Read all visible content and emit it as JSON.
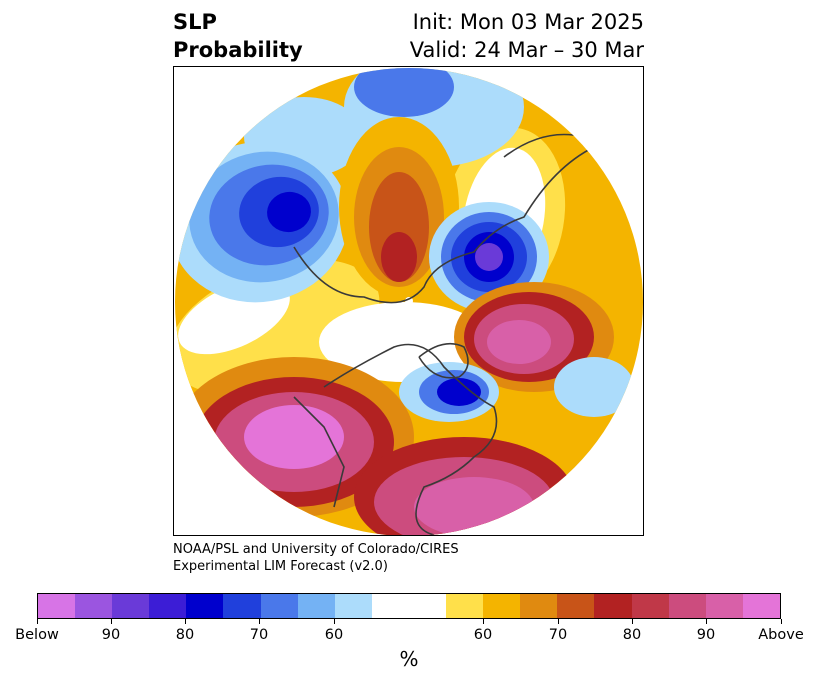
{
  "title": {
    "left_line1": "SLP",
    "left_line2": "Probability",
    "right_line1": "Init: Mon 03 Mar 2025",
    "right_line2": "Valid: 24 Mar – 30 Mar"
  },
  "credit": {
    "line1": "NOAA/PSL and University of Colorado/CIRES",
    "line2": "Experimental LIM Forecast (v2.0)"
  },
  "colorbar": {
    "colors": [
      "#d774e6",
      "#9b55e0",
      "#6a3ad8",
      "#3c1dd6",
      "#0000cd",
      "#2040dc",
      "#4a78ea",
      "#74b2f4",
      "#acdcfb",
      "#ffffff",
      "#ffffff",
      "#ffe04a",
      "#f4b400",
      "#e08a10",
      "#c85418",
      "#b22222",
      "#c03848",
      "#cc4c7e",
      "#d860a8",
      "#e474d8"
    ],
    "ticks": [
      "Below",
      "90",
      "80",
      "70",
      "60",
      "60",
      "70",
      "80",
      "90",
      "Above"
    ],
    "unit": "%"
  },
  "map": {
    "projection": "north-polar-stereographic",
    "colors": {
      "white": "#ffffff",
      "below60": "#acdcfb",
      "below65": "#74b2f4",
      "below70": "#4a78ea",
      "below80": "#2040dc",
      "below90": "#0000cd",
      "belowMax": "#6a3ad8",
      "above60": "#ffe04a",
      "above65": "#f4b400",
      "above70": "#e08a10",
      "above75": "#c85418",
      "above80": "#b22222",
      "above85": "#c03848",
      "above90": "#cc4c7e",
      "above95": "#d860a8",
      "aboveMax": "#e474d8",
      "coast": "#3a3a3a"
    }
  }
}
